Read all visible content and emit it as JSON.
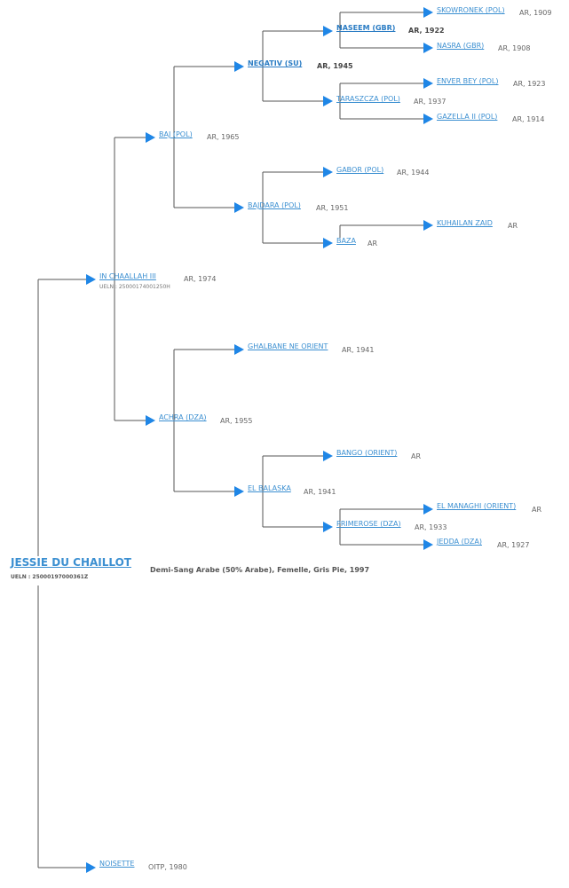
{
  "subject": {
    "name": "JESSIE DU CHAILLOT",
    "ueln": "UELN : 25000197000361Z",
    "description": "Demi-Sang Arabe (50% Arabe), Femelle, Gris Pie, 1997"
  },
  "ancestors": {
    "sire": {
      "name": "IN CHAALLAH III",
      "info": "AR, 1974",
      "ueln": "UELN : 25000174001250H"
    },
    "dam": {
      "name": "NOISETTE",
      "info": "OITP, 1980"
    },
    "s": {
      "name": "BAJ (POL)",
      "info": "AR, 1965"
    },
    "s_s": {
      "name": "NEGATIV (SU)",
      "info": "AR, 1945"
    },
    "s_s_s": {
      "name": "NASEEM (GBR)",
      "info": "AR, 1922"
    },
    "s_s_s_s": {
      "name": "SKOWRONEK (POL)",
      "info": "AR, 1909"
    },
    "s_s_s_d": {
      "name": "NASRA (GBR)",
      "info": "AR, 1908"
    },
    "s_s_d": {
      "name": "TARASZCZA (POL)",
      "info": "AR, 1937"
    },
    "s_s_d_s": {
      "name": "ENVER BEY (POL)",
      "info": "AR, 1923"
    },
    "s_s_d_d": {
      "name": "GAZELLA II (POL)",
      "info": "AR, 1914"
    },
    "s_d": {
      "name": "BAJDARA (POL)",
      "info": "AR, 1951"
    },
    "s_d_s": {
      "name": "GABOR (POL)",
      "info": "AR, 1944"
    },
    "s_d_d": {
      "name": "BAZA",
      "info": "AR"
    },
    "s_d_d_s": {
      "name": "KUHAILAN ZAID",
      "info": "AR"
    },
    "d": {
      "name": "ACHRA (DZA)",
      "info": "AR, 1955"
    },
    "d_s": {
      "name": "GHALBANE NE ORIENT",
      "info": "AR, 1941"
    },
    "d_d": {
      "name": "EL BALASKA",
      "info": "AR, 1941"
    },
    "d_d_s": {
      "name": "BANGO (ORIENT)",
      "info": "AR"
    },
    "d_d_d": {
      "name": "PRIMEROSE (DZA)",
      "info": "AR, 1933"
    },
    "d_d_d_s": {
      "name": "EL MANAGHI (ORIENT)",
      "info": "AR"
    },
    "d_d_d_d": {
      "name": "JEDDA (DZA)",
      "info": "AR, 1927"
    }
  },
  "colors": {
    "link": "#3b8fd1",
    "arrow": "#1f86e6",
    "line": "#555555",
    "text": "#666666"
  },
  "icons": {
    "node_marker": "right-triangle-icon"
  }
}
